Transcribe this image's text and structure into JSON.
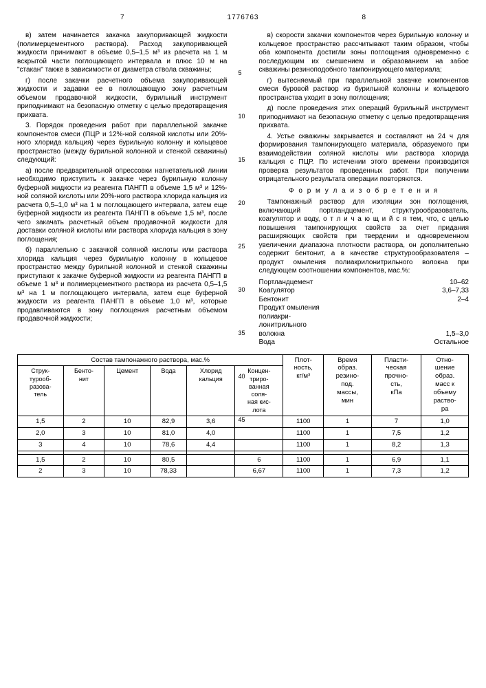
{
  "header": {
    "page_left": "7",
    "doc_number": "1776763",
    "page_right": "8"
  },
  "left_col": {
    "p1": "в) затем начинается закачка закупоривающей жидкости (полимерцементного раствора). Расход закупоривающей жидкости принимают в объеме 0,5–1,5 м³ из расчета на 1 м вскрытой части поглощающего интервала и плюс 10 м на \"стакан\" также в зависимости от диаметра ствола скважины;",
    "p2": "г) после закачки расчетного объема закупоривающей жидкости и задавки ее в поглощающую зону расчетным объемом продавочной жидкости, бурильный инструмент приподнимают на безопасную отметку с целью предотвращения прихвата.",
    "p3": "3. Порядок проведения работ при параллельной закачке компонентов смеси (ПЦР и 12%-ной соляной кислоты или 20%-ного хлорида кальция) через бурильную колонну и кольцевое пространство (между бурильной колонной и стенкой скважины) следующий:",
    "p4": "а) после предварительной опрессовки нагнетательной линии необходимо приступить к закачке через бурильную колонну буферной жидкости из реагента ПАНГП в объеме 1,5 м³ и 12%-ной соляной кислоты или 20%-ного раствора хлорида кальция из расчета 0,5–1,0 м³ на 1 м поглощающего интервала, затем еще буферной жидкости из реагента ПАНГП в объеме 1,5 м³, после чего закачать расчетный объем продавочной жидкости для доставки соляной кислоты или раствора хлорида кальция в зону поглощения;",
    "p5": "б) параллельно с закачкой соляной кислоты или раствора хлорида кальция через бурильную колонну в кольцевое пространство между бурильной колонной и стенкой скважины приступают к закачке буферной жидкости из реагента ПАНГП в объеме 1 м³ и полимерцементного раствора из расчета 0,5–1,5 м³ на 1 м поглощающего интервала, затем еще буферной жидкости из реагента ПАНГП в объеме 1,0 м³, которые продавливаются в зону поглощения расчетным объемом продавочной жидкости;"
  },
  "right_col": {
    "p1": "в) скорости закачки компонентов через бурильную колонну и кольцевое пространство рассчитывают таким образом, чтобы оба компонента достигли зоны поглощения одновременно с последующим их смешением и образованием на забое скважины резиноподобного тампонирующего материала;",
    "p2": "г) вытесняемый при параллельной закачке компонентов смеси буровой раствор из бурильной колонны и кольцевого пространства уходит в зону поглощения;",
    "p3": "д) после проведения этих операций бурильный инструмент приподнимают на безопасную отметку с целью предотвращения прихвата.",
    "p4": "4. Устье скважины закрывается и составляют на 24 ч для формирования тампонирующего материала, образуемого при взаимодействии соляной кислоты или раствора хлорида кальция с ПЦР. По истечении этого времени производится проверка результатов проведенных работ. При получении отрицательного результата операции повторяются.",
    "formula_title": "Ф о р м у л а  и з о б р е т е н и я",
    "p5": "Тампонажный раствор для изоляции зон поглощения, включающий портландцемент, структурообразователь, коагулятор и воду, о т л и ч а ю щ и й с я тем, что, с целью повышения тампонирующих свойств за счет придания расширяющих свойств при твердении и одновременном увеличении диапазона плотности раствора, он дополнительно содержит бентонит, а в качестве структурообразователя – продукт омыления полиакрилонитрильного волокна при следующем соотношении компонентов, мас.%:",
    "comp": [
      {
        "name": "Портландцемент",
        "val": "10–62"
      },
      {
        "name": "Коагулятор",
        "val": "3,6–7,33"
      },
      {
        "name": "Бентонит",
        "val": "2–4"
      },
      {
        "name": "Продукт омыления",
        "val": ""
      },
      {
        "name": "полиакри-",
        "val": ""
      },
      {
        "name": "лонитрильного",
        "val": ""
      },
      {
        "name": "волокна",
        "val": "1,5–3,0"
      },
      {
        "name": "Вода",
        "val": "Остальное"
      }
    ]
  },
  "line_numbers": [
    "5",
    "10",
    "15",
    "20",
    "25",
    "30",
    "35",
    "40",
    "45"
  ],
  "table": {
    "group_header": "Состав тампонажного раствора, мас.%",
    "cols": [
      "Струк-\nтурооб-\nразова-\nтель",
      "Бенто-\nнит",
      "Цемент",
      "Вода",
      "Хлорид\nкальция",
      "Концен-\nтриро-\nванная\nсоля-\nная кис-\nлота",
      "Плот-\nность,\nкг/м³",
      "Время\nобраз.\nрезино-\nпод.\nмассы,\nмин",
      "Пласти-\nческая\nпрочно-\nсть,\nкПа",
      "Отно-\nшение\nобраз.\nмасс к\nобъему\nраство-\nра"
    ],
    "rows": [
      [
        "1,5",
        "2",
        "10",
        "82,9",
        "3,6",
        "",
        "1100",
        "1",
        "7",
        "1,0"
      ],
      [
        "2,0",
        "3",
        "10",
        "81,0",
        "4,0",
        "",
        "1100",
        "1",
        "7,5",
        "1,2"
      ],
      [
        "3",
        "4",
        "10",
        "78,6",
        "4,4",
        "",
        "1100",
        "1",
        "8,2",
        "1,3"
      ],
      [
        "",
        "",
        "",
        "",
        "",
        "",
        "",
        "",
        "",
        ""
      ],
      [
        "1,5",
        "2",
        "10",
        "80,5",
        "",
        "6",
        "1100",
        "1",
        "6,9",
        "1,1"
      ],
      [
        "2",
        "3",
        "10",
        "78,33",
        "",
        "6,67",
        "1100",
        "1",
        "7,3",
        "1,2"
      ]
    ]
  }
}
